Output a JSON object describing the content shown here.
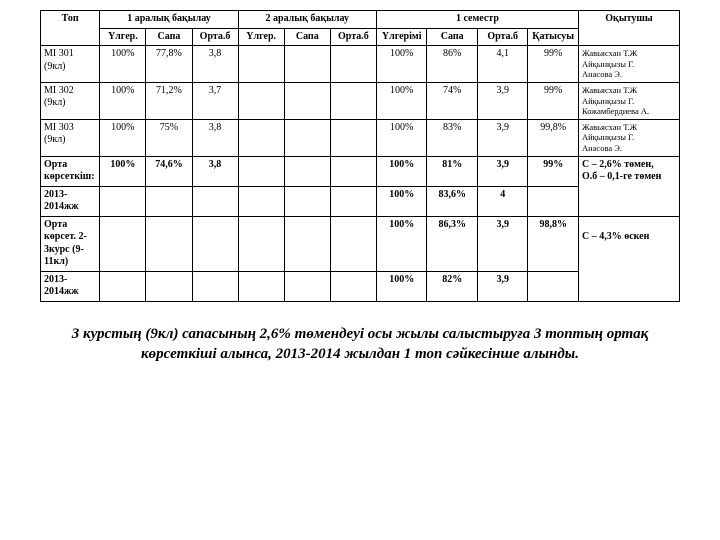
{
  "headers": {
    "top": "Топ",
    "mid1": "1 аралық бақылау",
    "mid2": "2 аралық бақылау",
    "sem": "1 семестр",
    "teacher": "Оқытушы",
    "sub": {
      "ulg": "Үлгер.",
      "sapa": "Сапа",
      "orta": "Орта.б",
      "ulgSem": "Үлгерімі",
      "katy": "Қатысуы"
    }
  },
  "rows": [
    {
      "top": "МІ 301 (9кл)",
      "u1": "100%",
      "s1": "77,8%",
      "o1": "3,8",
      "u2": "",
      "s2": "",
      "o2": "",
      "us": "100%",
      "ss": "86%",
      "os": "4,1",
      "k": "99%",
      "t": "Жавьясхан Т.Ж\nАйқынқызы Г.\nАнасова Э."
    },
    {
      "top": "МІ 302 (9кл)",
      "u1": "100%",
      "s1": "71,2%",
      "o1": "3,7",
      "u2": "",
      "s2": "",
      "o2": "",
      "us": "100%",
      "ss": "74%",
      "os": "3,9",
      "k": "99%",
      "t": "Жавьясхан Т.Ж\nАйқынқызы Г.\nКожамбердиева А."
    },
    {
      "top": "МІ 303 (9кл)",
      "u1": "100%",
      "s1": "75%",
      "o1": "3,8",
      "u2": "",
      "s2": "",
      "o2": "",
      "us": "100%",
      "ss": "83%",
      "os": "3,9",
      "k": "99,8%",
      "t": "Жавьясхан Т.Ж\nАйқынқызы Г.\nАнасова Э."
    },
    {
      "top": "Орта көрсеткіш:",
      "bold": true,
      "u1": "100%",
      "s1": "74,6%",
      "o1": "3,8",
      "u2": "",
      "s2": "",
      "o2": "",
      "us": "100%",
      "ss": "81%",
      "os": "3,9",
      "k": "99%",
      "t": "С – 2,6% төмен,\nО.б – 0,1-ге төмен",
      "tMergeNext": true
    },
    {
      "top": "2013-2014жж",
      "bold": true,
      "u1": "",
      "s1": "",
      "o1": "",
      "u2": "",
      "s2": "",
      "o2": "",
      "us": "100%",
      "ss": "83,6%",
      "os": "4",
      "k": "",
      "tSkip": true
    },
    {
      "top": "Орта көрсет. 2-3курс (9-11кл)",
      "bold": true,
      "u1": "",
      "s1": "",
      "o1": "",
      "u2": "",
      "s2": "",
      "o2": "",
      "us": "100%",
      "ss": "86,3%",
      "os": "3,9",
      "k": "98,8%",
      "t": "\nС – 4,3% өскен",
      "tMergeNext": true
    },
    {
      "top": "2013-2014жж",
      "bold": true,
      "u1": "",
      "s1": "",
      "o1": "",
      "u2": "",
      "s2": "",
      "o2": "",
      "us": "100%",
      "ss": "82%",
      "os": "3,9",
      "k": "",
      "tSkip": true
    }
  ],
  "caption": "3 курстың (9кл) сапасының 2,6% төмендеуі осы жылы салыстыруға 3 топтың ортақ көрсеткіші алынса, 2013-2014 жылдан 1 топ сәйкесінше алынды."
}
